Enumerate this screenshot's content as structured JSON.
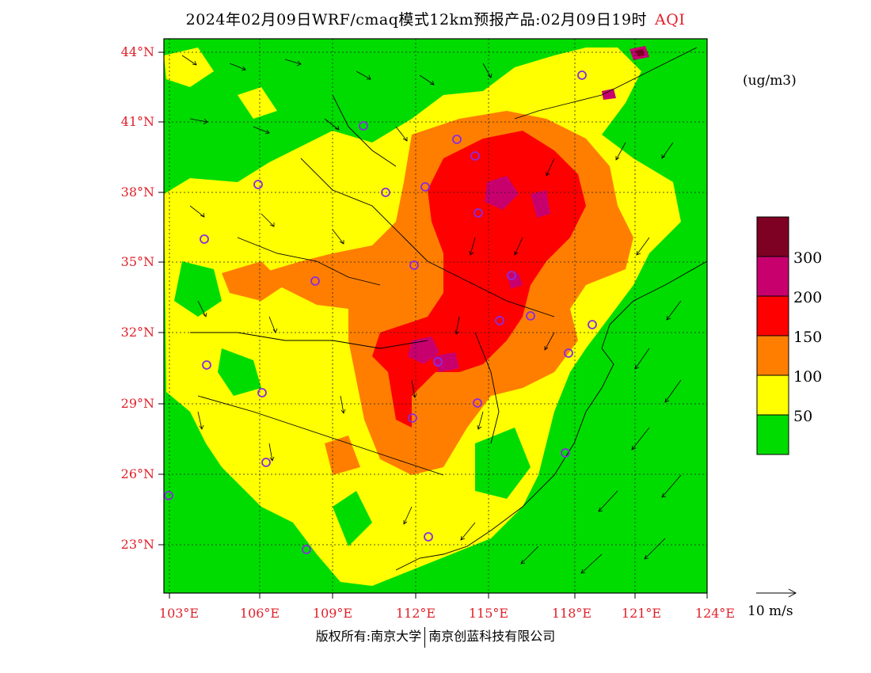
{
  "title": {
    "main": "2024年02月09日WRF/cmaq模式12km预报产品:02月09日19时",
    "variable": "AQI"
  },
  "unit": "(ug/m3)",
  "lat_labels": [
    "44°N",
    "41°N",
    "38°N",
    "35°N",
    "32°N",
    "29°N",
    "26°N",
    "23°N"
  ],
  "lon_labels": [
    "103°E",
    "106°E",
    "109°E",
    "112°E",
    "115°E",
    "118°E",
    "121°E",
    "124°E"
  ],
  "legend": {
    "levels": [
      {
        "label": "50",
        "color": "#00dc00"
      },
      {
        "label": "100",
        "color": "#ffff00"
      },
      {
        "label": "150",
        "color": "#ff7e00"
      },
      {
        "label": "200",
        "color": "#ff0000"
      },
      {
        "label": "300",
        "color": "#c8006e"
      },
      {
        "label": "",
        "color": "#7e0023"
      }
    ]
  },
  "reference_vector": "10 m/s",
  "footer": {
    "left": "版权所有:南京大学",
    "right": "南京创蓝科技有限公司"
  },
  "colors": {
    "good": "#00dc00",
    "moderate": "#ffff00",
    "usg": "#ff7e00",
    "unhealthy": "#ff0000",
    "very_unhealthy": "#c8006e",
    "hazardous": "#7e0023",
    "label_red": "#e0202a",
    "station_ring": "#8a2be2"
  },
  "icons": {
    "station": "circle-marker-icon",
    "wind": "arrow-icon"
  }
}
